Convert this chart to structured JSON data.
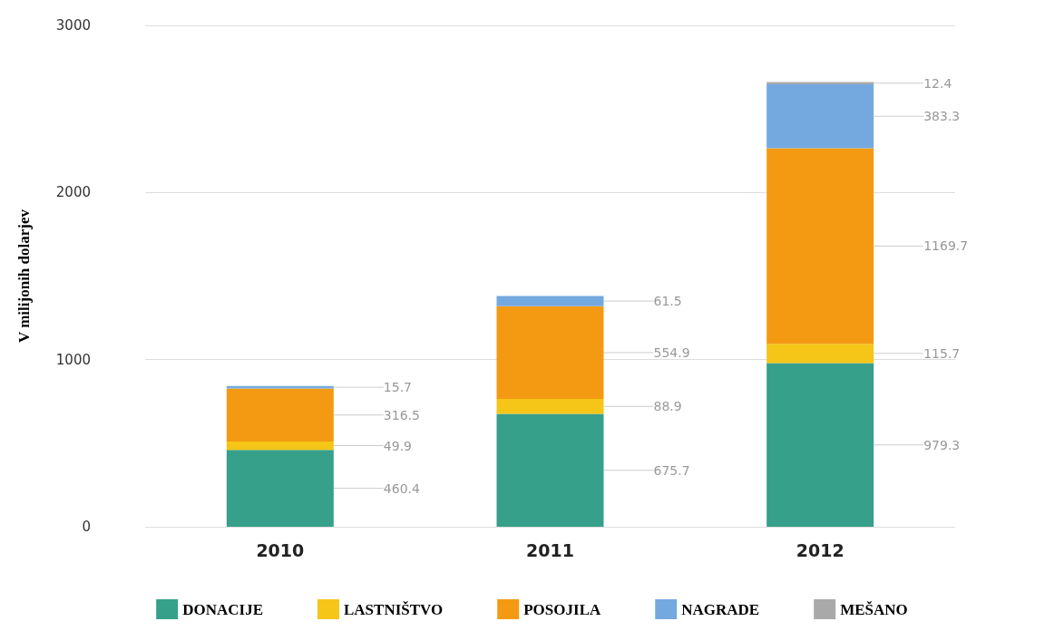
{
  "chart_data": {
    "type": "bar",
    "stacked": true,
    "ylabel": "V milijonih dolarjev",
    "categories": [
      "2010",
      "2011",
      "2012"
    ],
    "series": [
      {
        "name": "DONACIJE",
        "color": "#36a08a",
        "values": [
          460.4,
          675.7,
          979.3
        ],
        "value_labels": [
          "460.4",
          "675.7",
          "979.3"
        ]
      },
      {
        "name": "LASTNIŠTVO",
        "color": "#f5c518",
        "values": [
          49.9,
          88.9,
          115.7
        ],
        "value_labels": [
          "49.9",
          "88.9",
          "115.7"
        ]
      },
      {
        "name": "POSOJILA",
        "color": "#f39a12",
        "values": [
          316.5,
          554.9,
          1169.7
        ],
        "value_labels": [
          "316.5",
          "554.9",
          "1169.7"
        ]
      },
      {
        "name": "NAGRADE",
        "color": "#74a9e0",
        "values": [
          15.7,
          61.5,
          383.3
        ],
        "value_labels": [
          "15.7",
          "61.5",
          "383.3"
        ]
      },
      {
        "name": "MEŠANO",
        "color": "#a9a9a9",
        "values": [
          null,
          null,
          12.4
        ],
        "value_labels": [
          null,
          null,
          "12.4"
        ]
      }
    ],
    "ylim": [
      0,
      3000
    ],
    "yticks": [
      0,
      1000,
      2000,
      3000
    ],
    "grid": "y",
    "legend": "bottom"
  }
}
